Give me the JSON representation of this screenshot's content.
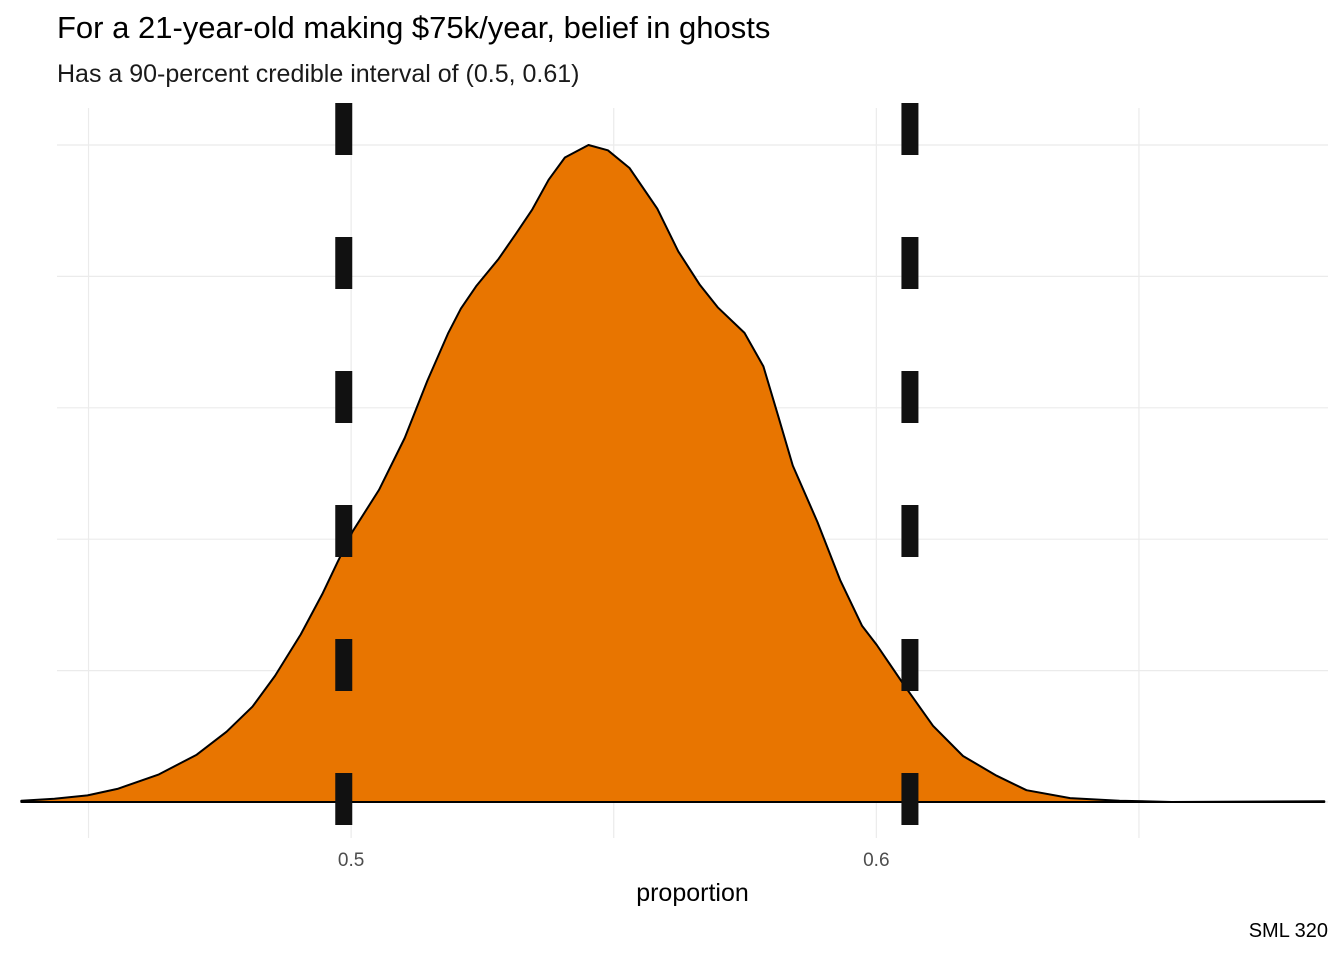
{
  "title": "For a 21-year-old making $75k/year, belief in ghosts",
  "subtitle": "Has a 90-percent credible interval of (0.5, 0.61)",
  "caption": "SML 320",
  "colors": {
    "fill": "#E87500",
    "outline": "#000000",
    "interval_lines": "#111111",
    "grid": "#ebebeb"
  },
  "chart_data": {
    "type": "area",
    "xlabel": "proportion",
    "ylabel": "",
    "xlim": [
      0.444,
      0.686
    ],
    "ylim": [
      0,
      1
    ],
    "x_ticks": [
      {
        "value": 0.5,
        "label": "0.5"
      },
      {
        "value": 0.6,
        "label": "0.6"
      }
    ],
    "x_minor_ticks": [
      0.45,
      0.55,
      0.65
    ],
    "y_gridlines": [
      0,
      0.2,
      0.4,
      0.6,
      0.8,
      1.0
    ],
    "show_y_tick_labels": false,
    "grid": true,
    "density": {
      "x": [
        0.4372,
        0.4435,
        0.4498,
        0.4555,
        0.4634,
        0.4706,
        0.4763,
        0.4812,
        0.4855,
        0.4904,
        0.4946,
        0.4974,
        0.5003,
        0.5053,
        0.5102,
        0.5145,
        0.5185,
        0.5209,
        0.5238,
        0.5281,
        0.5314,
        0.5345,
        0.5376,
        0.5407,
        0.5452,
        0.5489,
        0.553,
        0.5583,
        0.5623,
        0.5664,
        0.5698,
        0.5749,
        0.5785,
        0.5813,
        0.5841,
        0.5888,
        0.5931,
        0.5973,
        0.6001,
        0.6051,
        0.6108,
        0.6165,
        0.6229,
        0.6286,
        0.6369,
        0.6463,
        0.6562,
        0.6853
      ],
      "y": [
        0.002,
        0.005,
        0.01,
        0.02,
        0.042,
        0.072,
        0.107,
        0.145,
        0.192,
        0.255,
        0.318,
        0.365,
        0.412,
        0.475,
        0.554,
        0.641,
        0.714,
        0.751,
        0.785,
        0.827,
        0.865,
        0.902,
        0.947,
        0.981,
        1.0,
        0.992,
        0.965,
        0.903,
        0.838,
        0.787,
        0.753,
        0.714,
        0.663,
        0.588,
        0.512,
        0.426,
        0.338,
        0.268,
        0.239,
        0.18,
        0.116,
        0.07,
        0.04,
        0.018,
        0.006,
        0.002,
        0.0,
        0.001
      ]
    },
    "interval": {
      "lower": 0.4986,
      "upper": 0.6064,
      "style": "dashed"
    }
  }
}
